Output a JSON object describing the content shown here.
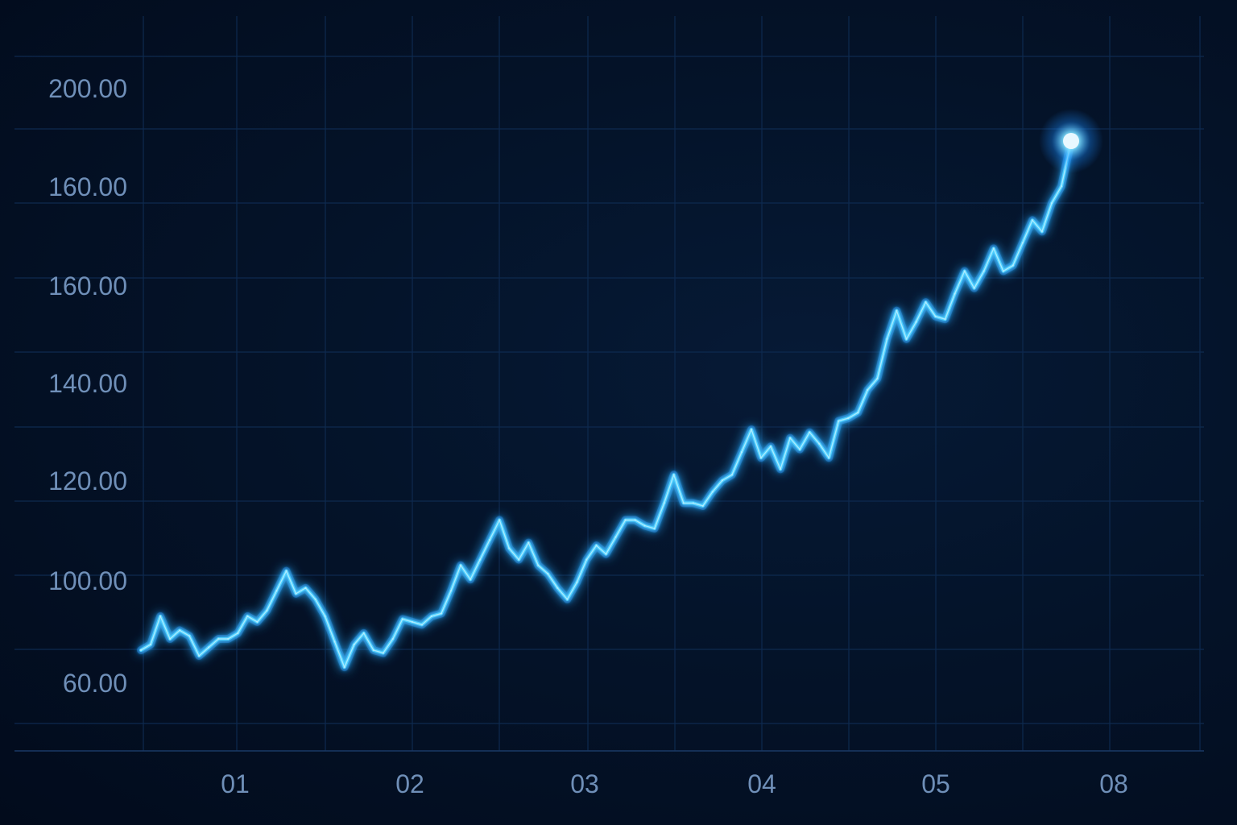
{
  "colors": {
    "background": "#020d1f",
    "line": "#4fd0ff",
    "glow": "#1a8cff",
    "grid": "#0e2a4f",
    "tick_text": "#6f8fb8",
    "endpoint": "#e8f8ff"
  },
  "chart_data": {
    "type": "line",
    "title": "",
    "xlabel": "",
    "ylabel": "",
    "grid": true,
    "legend": "none",
    "y_tick_labels": [
      "200.00",
      "160.00",
      "160.00",
      "140.00",
      "120.00",
      "100.00",
      "60.00"
    ],
    "x_tick_labels": [
      "01",
      "02",
      "03",
      "04",
      "05",
      "08"
    ],
    "series": [
      {
        "values": [
          88,
          89,
          94,
          90,
          91.5,
          90.5,
          87,
          88.5,
          90,
          90,
          91,
          94,
          93,
          95,
          98.5,
          102,
          98,
          99,
          97,
          94,
          89.5,
          85,
          89,
          91,
          88,
          87.5,
          90,
          93.5,
          93,
          92.5,
          94,
          94.5,
          98.5,
          103,
          100.5,
          104,
          107.5,
          111,
          106,
          104,
          107,
          103,
          101.5,
          99,
          97,
          100,
          104,
          106.5,
          105,
          108,
          111,
          111,
          110,
          109.5,
          114,
          119,
          114,
          114,
          113.5,
          116,
          118,
          119,
          123,
          127,
          122,
          124,
          120,
          125.5,
          123.5,
          126.5,
          124.5,
          122,
          128.5,
          129,
          130,
          134,
          136,
          143,
          148,
          143,
          146,
          149.5,
          147,
          146.5,
          151,
          155,
          152,
          155,
          159,
          155,
          156,
          160,
          164,
          162,
          167,
          170,
          178
        ]
      }
    ]
  }
}
